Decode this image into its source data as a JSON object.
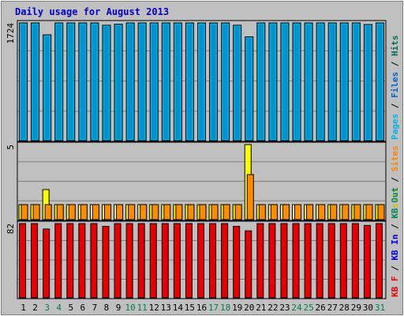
{
  "title": "Daily usage for August 2013",
  "chart_data": [
    {
      "type": "bar",
      "panel": "top",
      "ymax_label": "1724",
      "ylim": [
        0,
        1724
      ],
      "right_label": [
        {
          "text": "Pages",
          "color": "#00b4e8"
        },
        {
          "text": " / ",
          "color": "#000000"
        },
        {
          "text": "Files",
          "color": "#0064c8"
        },
        {
          "text": " / ",
          "color": "#000000"
        },
        {
          "text": "Hits",
          "color": "#006e5a"
        }
      ],
      "categories": [
        "1",
        "2",
        "3",
        "4",
        "5",
        "6",
        "7",
        "8",
        "9",
        "10",
        "11",
        "12",
        "13",
        "14",
        "15",
        "16",
        "17",
        "18",
        "19",
        "20",
        "21",
        "22",
        "23",
        "24",
        "25",
        "26",
        "27",
        "28",
        "29",
        "30",
        "31"
      ],
      "weekend_days": [
        "3",
        "4",
        "10",
        "11",
        "17",
        "18",
        "24",
        "25",
        "31"
      ],
      "series": [
        {
          "name": "Hits",
          "color": "#00b4e8",
          "values": [
            1724,
            1724,
            1550,
            1724,
            1724,
            1724,
            1724,
            1690,
            1705,
            1724,
            1724,
            1724,
            1724,
            1724,
            1724,
            1724,
            1724,
            1724,
            1690,
            1520,
            1724,
            1724,
            1724,
            1724,
            1724,
            1724,
            1724,
            1724,
            1724,
            1700,
            1724
          ]
        }
      ]
    },
    {
      "type": "bar",
      "panel": "middle",
      "ymax_label": "5",
      "ylim": [
        0,
        5
      ],
      "right_label": [
        {
          "text": "Visits",
          "color": "#c8c800"
        },
        {
          "text": " / ",
          "color": "#000000"
        },
        {
          "text": "Sites",
          "color": "#ff8000"
        }
      ],
      "series": [
        {
          "name": "Visits",
          "color": "#ffff00",
          "values": [
            1,
            1,
            2,
            1,
            1,
            1,
            1,
            1,
            1,
            1,
            1,
            1,
            1,
            1,
            1,
            1,
            1,
            1,
            1,
            5,
            1,
            1,
            1,
            1,
            1,
            1,
            1,
            1,
            1,
            1,
            1
          ]
        },
        {
          "name": "Sites",
          "color": "#ff8c00",
          "values": [
            1,
            1,
            1,
            1,
            1,
            1,
            1,
            1,
            1,
            1,
            1,
            1,
            1,
            1,
            1,
            1,
            1,
            1,
            1,
            3,
            1,
            1,
            1,
            1,
            1,
            1,
            1,
            1,
            1,
            1,
            1
          ]
        }
      ]
    },
    {
      "type": "bar",
      "panel": "bottom",
      "ymax_label": "82",
      "ylim": [
        0,
        82
      ],
      "right_label": [
        {
          "text": "KB F",
          "color": "#e80000"
        },
        {
          "text": " / ",
          "color": "#000000"
        },
        {
          "text": "KB In",
          "color": "#0000e8"
        },
        {
          "text": " / ",
          "color": "#000000"
        },
        {
          "text": "KB Out",
          "color": "#008080"
        }
      ],
      "series": [
        {
          "name": "KB F",
          "color": "#e80000",
          "values": [
            82,
            82,
            76,
            82,
            82,
            82,
            82,
            79,
            82,
            82,
            82,
            82,
            82,
            82,
            82,
            82,
            82,
            82,
            79,
            74,
            82,
            82,
            82,
            82,
            82,
            82,
            82,
            82,
            82,
            80,
            82
          ]
        }
      ]
    }
  ]
}
